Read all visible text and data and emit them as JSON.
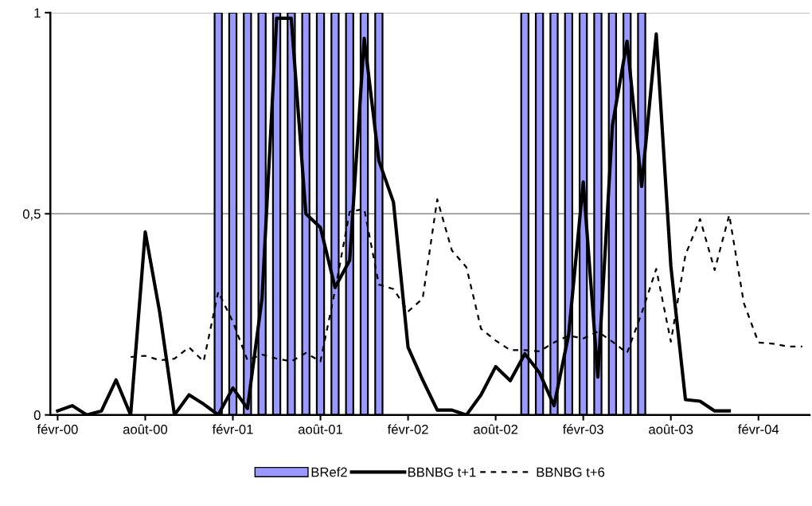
{
  "chart_data": {
    "type": "bar",
    "categories": [
      "févr-00",
      null,
      null,
      null,
      null,
      null,
      "août-00",
      null,
      null,
      null,
      null,
      null,
      "févr-01",
      null,
      null,
      null,
      null,
      null,
      "août-01",
      null,
      null,
      null,
      null,
      null,
      "févr-02",
      null,
      null,
      null,
      null,
      null,
      "août-02",
      null,
      null,
      null,
      null,
      null,
      "févr-03",
      null,
      null,
      null,
      null,
      null,
      "août-03",
      null,
      null,
      null,
      null,
      null,
      "févr-04",
      null,
      null,
      null
    ],
    "series": [
      {
        "name": "BRef2",
        "color": "#9999ff",
        "values": [
          null,
          null,
          null,
          null,
          null,
          null,
          null,
          null,
          null,
          null,
          null,
          1,
          1,
          1,
          1,
          1,
          1,
          1,
          1,
          1,
          1,
          1,
          1,
          null,
          null,
          null,
          null,
          null,
          null,
          null,
          null,
          null,
          1,
          1,
          1,
          1,
          1,
          1,
          1,
          1,
          1,
          null,
          null,
          null,
          null,
          null,
          null,
          null,
          null,
          null,
          null,
          null
        ]
      },
      {
        "name": "BBNBG t+1",
        "type": "line",
        "color": "#000000",
        "line_style": "solid",
        "values": [
          0.01,
          0.023,
          0,
          0.01,
          0.087,
          0,
          0.455,
          0.253,
          0,
          0.05,
          0.027,
          0,
          0.067,
          0.016,
          0.29,
          0.986,
          0.986,
          0.5,
          0.466,
          0.317,
          0.384,
          0.936,
          0.632,
          0.529,
          0.168,
          0.087,
          0.012,
          0.012,
          0,
          0.05,
          0.12,
          0.085,
          0.152,
          0.105,
          0.023,
          0.2,
          0.579,
          0.094,
          0.72,
          0.929,
          0.568,
          0.947,
          0.37,
          0.038,
          0.034,
          0.01,
          0.01,
          null,
          null,
          null,
          null,
          null
        ]
      },
      {
        "name": "BBNBG t+6",
        "type": "line",
        "color": "#000000",
        "line_style": "dotted",
        "values": [
          null,
          null,
          null,
          null,
          null,
          0.144,
          0.147,
          0.136,
          0.14,
          0.168,
          0.133,
          0.306,
          0.232,
          0.136,
          0.15,
          0.14,
          0.133,
          0.154,
          0.133,
          0.31,
          0.505,
          0.512,
          0.324,
          0.313,
          0.257,
          0.289,
          0.536,
          0.409,
          0.367,
          0.214,
          0.185,
          0.161,
          0.161,
          0.158,
          0.18,
          0.197,
          0.19,
          0.207,
          0.182,
          0.154,
          0.253,
          0.363,
          0.182,
          0.398,
          0.487,
          0.36,
          0.497,
          0.278,
          0.18,
          0.177,
          0.17,
          0.17
        ]
      }
    ],
    "ylim": [
      0,
      1
    ],
    "yticks": [
      0,
      {
        "value": 0.5,
        "label": "0,5"
      },
      1
    ],
    "grid": "y",
    "legend": "bottom"
  }
}
